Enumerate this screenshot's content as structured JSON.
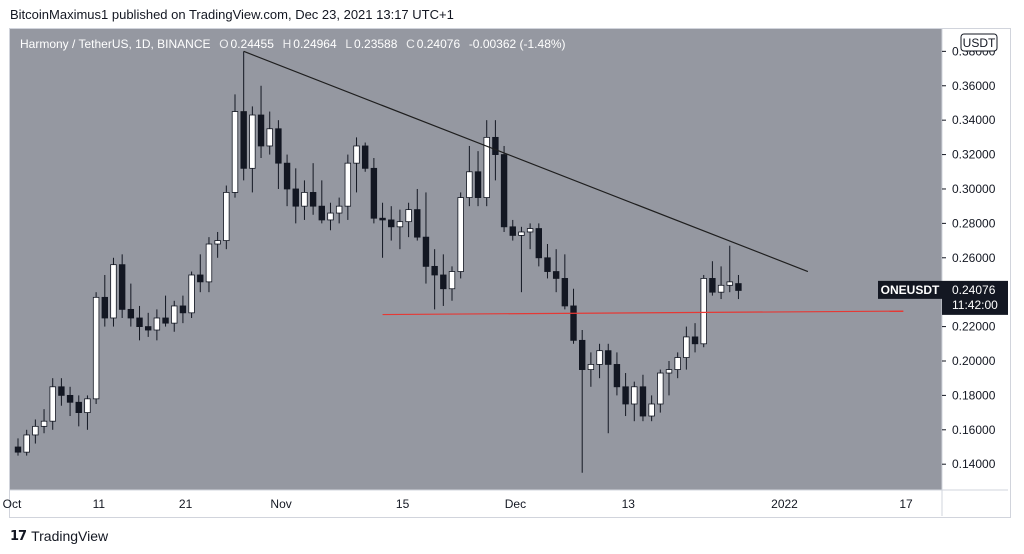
{
  "header": {
    "published": "BitcoinMaximus1 published on TradingView.com, Dec 23, 2021 13:17 UTC+1"
  },
  "legend": {
    "pair": "Harmony / TetherUS, 1D, BINANCE",
    "o_label": "O",
    "o": "0.24455",
    "h_label": "H",
    "h": "0.24964",
    "l_label": "L",
    "l": "0.23588",
    "c_label": "C",
    "c": "0.24076",
    "change": "-0.00362 (-1.48%)"
  },
  "currency_badge": "USDT",
  "price_tag": {
    "symbol": "ONEUSDT",
    "price": "0.24076",
    "countdown": "11:42:00"
  },
  "footer": {
    "brand": "TradingView",
    "logo": "tradingview-logo"
  },
  "colors": {
    "plot_bg": "#9598a1",
    "up": "#ffffff",
    "down": "#131722",
    "trendline": "#1e1e1e",
    "support": "#e53935"
  },
  "chart_data": {
    "type": "candlestick",
    "x_ticks": [
      "Oct",
      "11",
      "21",
      "Nov",
      "15",
      "Dec",
      "13",
      "2022",
      "17"
    ],
    "y_ticks": [
      "0.38000",
      "0.36000",
      "0.34000",
      "0.32000",
      "0.30000",
      "0.28000",
      "0.26000",
      "0.24000",
      "0.22000",
      "0.20000",
      "0.18000",
      "0.16000",
      "0.14000"
    ],
    "ylim": [
      0.125,
      0.393
    ],
    "candles": [
      [
        0.15,
        0.155,
        0.145,
        0.147
      ],
      [
        0.147,
        0.16,
        0.145,
        0.157
      ],
      [
        0.157,
        0.166,
        0.152,
        0.162
      ],
      [
        0.162,
        0.172,
        0.158,
        0.165
      ],
      [
        0.165,
        0.19,
        0.16,
        0.185
      ],
      [
        0.185,
        0.19,
        0.174,
        0.18
      ],
      [
        0.18,
        0.185,
        0.168,
        0.176
      ],
      [
        0.176,
        0.18,
        0.162,
        0.17
      ],
      [
        0.17,
        0.18,
        0.16,
        0.178
      ],
      [
        0.178,
        0.24,
        0.175,
        0.237
      ],
      [
        0.237,
        0.25,
        0.22,
        0.225
      ],
      [
        0.225,
        0.26,
        0.22,
        0.256
      ],
      [
        0.256,
        0.262,
        0.225,
        0.23
      ],
      [
        0.23,
        0.245,
        0.22,
        0.225
      ],
      [
        0.225,
        0.232,
        0.212,
        0.22
      ],
      [
        0.22,
        0.228,
        0.214,
        0.218
      ],
      [
        0.218,
        0.23,
        0.212,
        0.225
      ],
      [
        0.225,
        0.238,
        0.22,
        0.222
      ],
      [
        0.222,
        0.235,
        0.217,
        0.232
      ],
      [
        0.232,
        0.238,
        0.222,
        0.228
      ],
      [
        0.228,
        0.252,
        0.225,
        0.25
      ],
      [
        0.25,
        0.262,
        0.24,
        0.246
      ],
      [
        0.246,
        0.272,
        0.24,
        0.268
      ],
      [
        0.268,
        0.275,
        0.26,
        0.27
      ],
      [
        0.27,
        0.302,
        0.265,
        0.298
      ],
      [
        0.298,
        0.355,
        0.295,
        0.345
      ],
      [
        0.345,
        0.38,
        0.305,
        0.312
      ],
      [
        0.312,
        0.348,
        0.298,
        0.343
      ],
      [
        0.343,
        0.36,
        0.318,
        0.325
      ],
      [
        0.325,
        0.345,
        0.32,
        0.335
      ],
      [
        0.335,
        0.34,
        0.3,
        0.315
      ],
      [
        0.315,
        0.32,
        0.29,
        0.3
      ],
      [
        0.3,
        0.312,
        0.28,
        0.29
      ],
      [
        0.29,
        0.305,
        0.282,
        0.298
      ],
      [
        0.298,
        0.315,
        0.285,
        0.29
      ],
      [
        0.29,
        0.305,
        0.28,
        0.282
      ],
      [
        0.282,
        0.292,
        0.276,
        0.286
      ],
      [
        0.286,
        0.295,
        0.28,
        0.29
      ],
      [
        0.29,
        0.32,
        0.282,
        0.315
      ],
      [
        0.315,
        0.33,
        0.298,
        0.325
      ],
      [
        0.325,
        0.327,
        0.31,
        0.312
      ],
      [
        0.312,
        0.318,
        0.28,
        0.283
      ],
      [
        0.283,
        0.292,
        0.26,
        0.282
      ],
      [
        0.282,
        0.29,
        0.27,
        0.278
      ],
      [
        0.278,
        0.288,
        0.265,
        0.281
      ],
      [
        0.281,
        0.292,
        0.272,
        0.288
      ],
      [
        0.288,
        0.3,
        0.27,
        0.272
      ],
      [
        0.272,
        0.298,
        0.245,
        0.255
      ],
      [
        0.255,
        0.265,
        0.23,
        0.25
      ],
      [
        0.25,
        0.262,
        0.232,
        0.242
      ],
      [
        0.242,
        0.255,
        0.235,
        0.252
      ],
      [
        0.252,
        0.298,
        0.248,
        0.295
      ],
      [
        0.295,
        0.325,
        0.29,
        0.31
      ],
      [
        0.31,
        0.322,
        0.29,
        0.295
      ],
      [
        0.295,
        0.34,
        0.29,
        0.33
      ],
      [
        0.33,
        0.34,
        0.305,
        0.32
      ],
      [
        0.32,
        0.325,
        0.275,
        0.278
      ],
      [
        0.278,
        0.282,
        0.27,
        0.273
      ],
      [
        0.273,
        0.278,
        0.24,
        0.275
      ],
      [
        0.275,
        0.28,
        0.265,
        0.277
      ],
      [
        0.277,
        0.28,
        0.255,
        0.26
      ],
      [
        0.26,
        0.268,
        0.248,
        0.252
      ],
      [
        0.252,
        0.265,
        0.24,
        0.248
      ],
      [
        0.248,
        0.262,
        0.23,
        0.232
      ],
      [
        0.232,
        0.242,
        0.21,
        0.212
      ],
      [
        0.212,
        0.218,
        0.135,
        0.195
      ],
      [
        0.195,
        0.205,
        0.185,
        0.198
      ],
      [
        0.198,
        0.21,
        0.19,
        0.206
      ],
      [
        0.206,
        0.21,
        0.158,
        0.198
      ],
      [
        0.198,
        0.205,
        0.18,
        0.185
      ],
      [
        0.185,
        0.193,
        0.168,
        0.175
      ],
      [
        0.175,
        0.188,
        0.165,
        0.185
      ],
      [
        0.185,
        0.192,
        0.165,
        0.168
      ],
      [
        0.168,
        0.18,
        0.165,
        0.175
      ],
      [
        0.175,
        0.195,
        0.17,
        0.193
      ],
      [
        0.193,
        0.2,
        0.18,
        0.195
      ],
      [
        0.195,
        0.205,
        0.19,
        0.202
      ],
      [
        0.202,
        0.22,
        0.195,
        0.214
      ],
      [
        0.214,
        0.222,
        0.205,
        0.21
      ],
      [
        0.21,
        0.25,
        0.208,
        0.248
      ],
      [
        0.248,
        0.258,
        0.238,
        0.24
      ],
      [
        0.24,
        0.255,
        0.236,
        0.244
      ],
      [
        0.244,
        0.267,
        0.24,
        0.246
      ],
      [
        0.245,
        0.25,
        0.236,
        0.241
      ]
    ],
    "trendline": [
      [
        26,
        0.38
      ],
      [
        91,
        0.252
      ]
    ],
    "support_line": [
      [
        42,
        0.227
      ],
      [
        102,
        0.229
      ]
    ],
    "grid": false,
    "price_axis": "right"
  }
}
